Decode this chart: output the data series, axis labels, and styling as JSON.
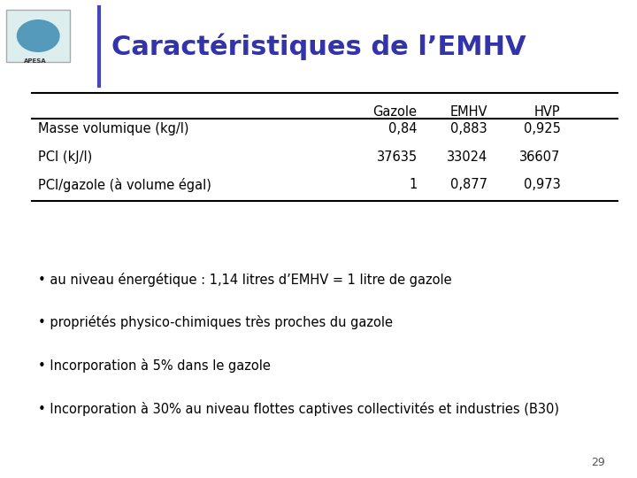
{
  "title": "Caractéristiques de l’EMHV",
  "title_color": "#3333AA",
  "background_color": "#FFFFFF",
  "table_headers": [
    "",
    "Gazole",
    "EMHV",
    "HVP"
  ],
  "table_rows": [
    [
      "Masse volumique (kg/l)",
      "0,84",
      "0,883",
      "0,925"
    ],
    [
      "PCI (kJ/l)",
      "37635",
      "33024",
      "36607"
    ],
    [
      "PCI/gazole (à volume égal)",
      "1",
      "0,877",
      "0,973"
    ]
  ],
  "bullets": [
    "• au niveau énergétique : 1,14 litres d’EMHV = 1 litre de gazole",
    "• propriétés physico-chimiques très proches du gazole",
    "• Incorporation à 5% dans le gazole",
    "• Incorporation à 30% au niveau flottes captives collectivités et industries (B30)"
  ],
  "page_number": "29",
  "line_color": "#000000",
  "text_color": "#000000",
  "accent_line_color": "#4444BB",
  "logo_box_color": "#DDEEEE",
  "logo_circle_color": "#5599BB"
}
